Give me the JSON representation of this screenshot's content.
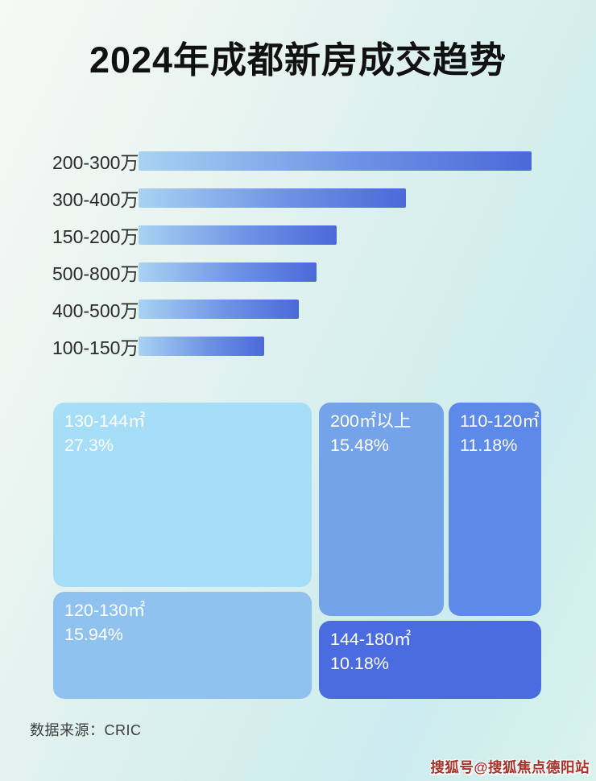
{
  "page": {
    "title": "2024年成都新房成交趋势",
    "footer": {
      "source": "数据来源：CRIC"
    },
    "watermark": "搜狐号@搜狐焦点德阳站"
  },
  "chart_data": [
    {
      "type": "bar",
      "orientation": "horizontal",
      "categories": [
        "200-300万",
        "300-400万",
        "150-200万",
        "500-800万",
        "400-500万",
        "100-150万"
      ],
      "values": [
        100,
        68,
        50.5,
        45.3,
        40.8,
        32
      ],
      "values_note": "no numeric labels shown in image; values are bar lengths as % of longest bar, estimated from pixels",
      "bar_gradient_start": "#a9d2f2",
      "bar_gradient_end": "#4b69d9",
      "grid": false,
      "value_labels_shown": false
    },
    {
      "type": "treemap",
      "items": [
        {
          "label": "130-144㎡",
          "value": 27.3,
          "display": "27.3%",
          "color": "#a6def8"
        },
        {
          "label": "120-130㎡",
          "value": 15.94,
          "display": "15.94%",
          "color": "#90c2f0"
        },
        {
          "label": "200㎡以上",
          "value": 15.48,
          "display": "15.48%",
          "color": "#74a3ea"
        },
        {
          "label": "110-120㎡",
          "value": 11.18,
          "display": "11.18%",
          "color": "#5d89e8"
        },
        {
          "label": "144-180㎡",
          "value": 10.18,
          "display": "10.18%",
          "color": "#4a6ce0"
        }
      ],
      "text_color": "#ffffff"
    }
  ],
  "colors": {
    "background_gradient": [
      "#f7f9f6",
      "#e9f4f0",
      "#cdecef",
      "#d9f3ec"
    ],
    "title_text": "#111111",
    "bar_label_text": "#2b2b2b",
    "footer_text": "#3c3c3c",
    "watermark_text": "#a8322c"
  }
}
